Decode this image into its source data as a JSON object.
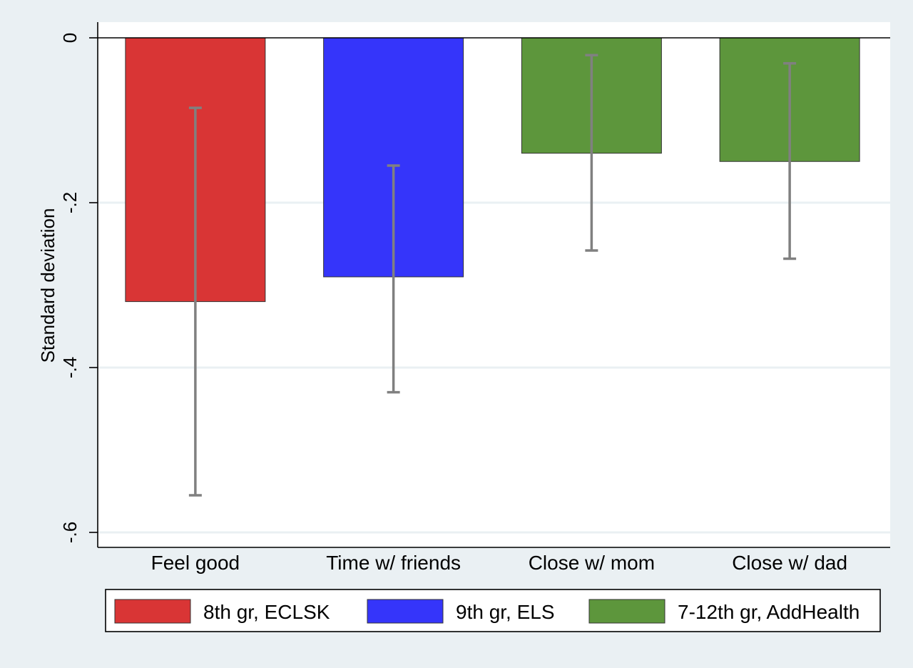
{
  "chart_data": {
    "type": "bar",
    "title": "",
    "xlabel": "",
    "ylabel": "Standard deviation",
    "ylim": [
      -0.62,
      0.0
    ],
    "yticks": [
      0,
      -0.2,
      -0.4,
      -0.6
    ],
    "ytick_labels": [
      "0",
      "-.2",
      "-.4",
      "-.6"
    ],
    "grid": true,
    "legend_position": "bottom",
    "categories": [
      "Feel good",
      "Time w/ friends",
      "Close w/ mom",
      "Close w/ dad"
    ],
    "values": [
      -0.32,
      -0.29,
      -0.14,
      -0.15
    ],
    "ci_lower": [
      -0.555,
      -0.43,
      -0.258,
      -0.268
    ],
    "ci_upper": [
      -0.085,
      -0.155,
      -0.021,
      -0.031
    ],
    "bar_series": [
      0,
      1,
      2,
      2
    ],
    "legend": [
      {
        "label": "8th gr, ECLSK",
        "color": "#d93535"
      },
      {
        "label": "9th gr, ELS",
        "color": "#3535fa"
      },
      {
        "label": "7-12th gr, AddHealth",
        "color": "#5d963c"
      }
    ],
    "colors": {
      "background": "#eaf0f3",
      "plot_area": "#ffffff",
      "gridline": "#eaf0f3",
      "error_bar": "#808080",
      "bar_edge": "#333333"
    }
  }
}
